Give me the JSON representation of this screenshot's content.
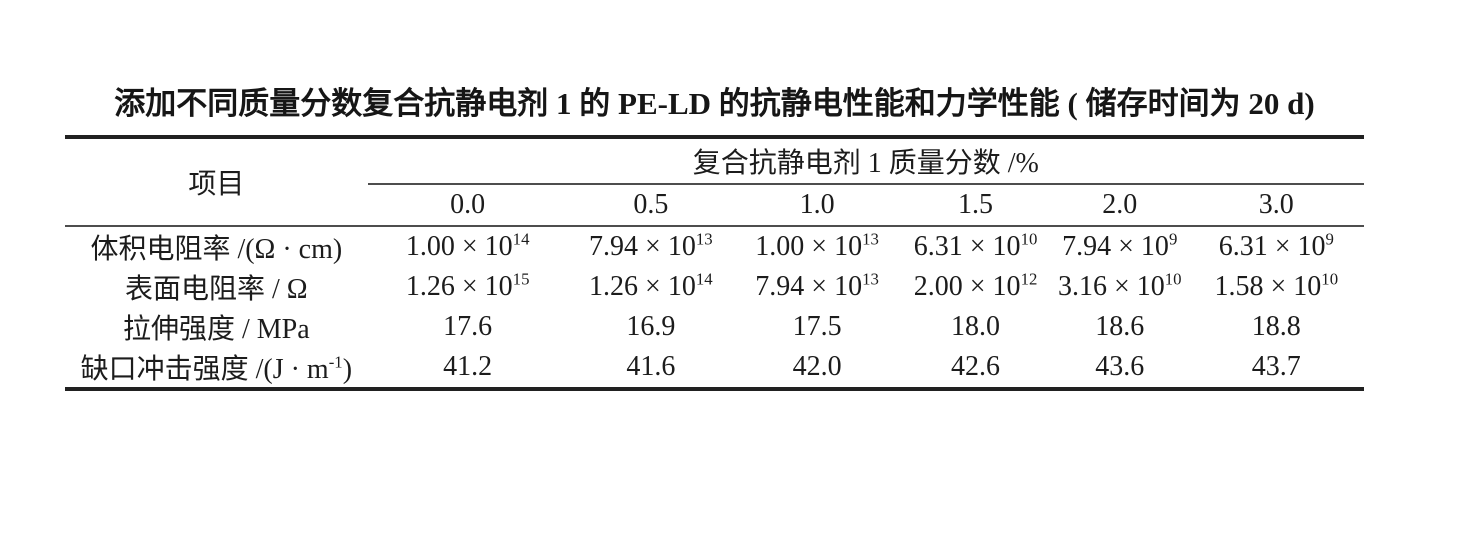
{
  "page": {
    "background": "#ffffff",
    "text_color": "#1c1c1c",
    "thick_rule_color": "#212121",
    "thin_rule_color": "#4d4d4d"
  },
  "table": {
    "title": "添加不同质量分数复合抗静电剂 1 的 PE-LD 的抗静电性能和力学性能 ( 储存时间为 20 d)",
    "header": {
      "item_label": "项目",
      "group_label": "复合抗静电剂 1 质量分数 /%",
      "mass_fractions": [
        "0.0",
        "0.5",
        "1.0",
        "1.5",
        "2.0",
        "3.0"
      ]
    },
    "rows": [
      {
        "label": "体积电阻率 /(Ω · cm)",
        "values": [
          "1.00 × 10^{14}",
          "7.94 × 10^{13}",
          "1.00 × 10^{13}",
          "6.31 × 10^{10}",
          "7.94 × 10^{9}",
          "6.31 × 10^{9}"
        ]
      },
      {
        "label": "表面电阻率 / Ω",
        "values": [
          "1.26 × 10^{15}",
          "1.26 × 10^{14}",
          "7.94 × 10^{13}",
          "2.00 × 10^{12}",
          "3.16 × 10^{10}",
          "1.58 × 10^{10}"
        ]
      },
      {
        "label": "拉伸强度 / MPa",
        "values": [
          "17.6",
          "16.9",
          "17.5",
          "18.0",
          "18.6",
          "18.8"
        ]
      },
      {
        "label": "缺口冲击强度 /(J · m^{-1})",
        "values": [
          "41.2",
          "41.6",
          "42.0",
          "42.6",
          "43.6",
          "43.7"
        ]
      }
    ]
  }
}
